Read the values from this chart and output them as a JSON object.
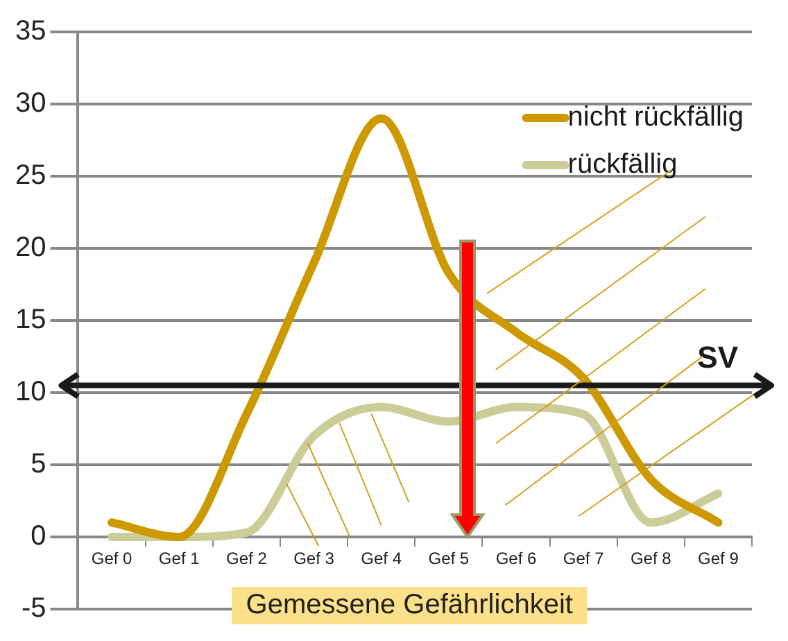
{
  "chart_data": {
    "type": "line",
    "xlabel": "Gemessene Gefährlichkeit",
    "categories": [
      "Gef 0",
      "Gef 1",
      "Gef 2",
      "Gef 3",
      "Gef 4",
      "Gef 5",
      "Gef 6",
      "Gef 7",
      "Gef 8",
      "Gef 9"
    ],
    "series": [
      {
        "name": "nicht rückfällig",
        "color": "#cc9900",
        "values": [
          1,
          0,
          8.5,
          19,
          29,
          18.3,
          14.2,
          11,
          4,
          1
        ]
      },
      {
        "name": "rückfällig",
        "color": "#cccc99",
        "values": [
          0,
          0,
          0.3,
          7,
          9,
          8,
          9,
          8.5,
          1,
          3
        ]
      }
    ],
    "ylim": [
      -5,
      35
    ],
    "yticks": [
      -5,
      0,
      5,
      10,
      15,
      20,
      25,
      30,
      35
    ],
    "grid": "y",
    "legend": "top right",
    "marker": "none",
    "line_style": "solid",
    "ref_lines": [
      {
        "axis": "y",
        "value": 10.5,
        "label": "SV",
        "color": "#1a1a1a"
      }
    ]
  }
}
